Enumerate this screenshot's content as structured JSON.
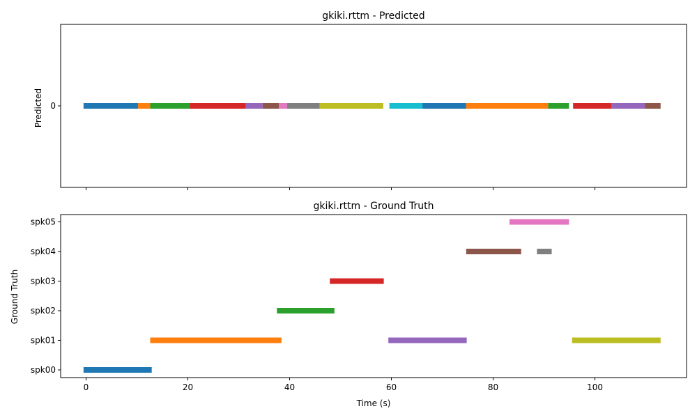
{
  "chart_data": [
    {
      "type": "timeline",
      "title": "gkiki.rttm - Predicted",
      "ylabel": "Predicted",
      "xlabel": "",
      "xlim": [
        -5,
        118
      ],
      "xticks": [
        0,
        20,
        40,
        60,
        80,
        100
      ],
      "show_xtick_labels": false,
      "rows": [
        "0"
      ],
      "segments": [
        {
          "row": 0,
          "start": -0.5,
          "end": 10.2,
          "color": "#1f77b4"
        },
        {
          "row": 0,
          "start": 10.2,
          "end": 12.6,
          "color": "#ff7f0e"
        },
        {
          "row": 0,
          "start": 12.6,
          "end": 20.3,
          "color": "#2ca02c"
        },
        {
          "row": 0,
          "start": 20.3,
          "end": 31.4,
          "color": "#d62728"
        },
        {
          "row": 0,
          "start": 31.4,
          "end": 34.7,
          "color": "#9467bd"
        },
        {
          "row": 0,
          "start": 34.7,
          "end": 37.9,
          "color": "#8c564b"
        },
        {
          "row": 0,
          "start": 37.9,
          "end": 39.5,
          "color": "#e377c2"
        },
        {
          "row": 0,
          "start": 39.5,
          "end": 45.9,
          "color": "#7f7f7f"
        },
        {
          "row": 0,
          "start": 45.9,
          "end": 58.4,
          "color": "#bcbd22"
        },
        {
          "row": 0,
          "start": 59.6,
          "end": 66.1,
          "color": "#17becf"
        },
        {
          "row": 0,
          "start": 66.1,
          "end": 74.7,
          "color": "#1f77b4"
        },
        {
          "row": 0,
          "start": 74.7,
          "end": 90.8,
          "color": "#ff7f0e"
        },
        {
          "row": 0,
          "start": 90.8,
          "end": 94.9,
          "color": "#2ca02c"
        },
        {
          "row": 0,
          "start": 95.7,
          "end": 103.2,
          "color": "#d62728"
        },
        {
          "row": 0,
          "start": 103.2,
          "end": 109.8,
          "color": "#9467bd"
        },
        {
          "row": 0,
          "start": 109.8,
          "end": 112.9,
          "color": "#8c564b"
        }
      ]
    },
    {
      "type": "timeline",
      "title": "gkiki.rttm - Ground Truth",
      "ylabel": "Ground Truth",
      "xlabel": "Time (s)",
      "xlim": [
        -5,
        118
      ],
      "xticks": [
        0,
        20,
        40,
        60,
        80,
        100
      ],
      "show_xtick_labels": true,
      "rows": [
        "spk00",
        "spk01",
        "spk02",
        "spk03",
        "spk04",
        "spk05"
      ],
      "segments": [
        {
          "row": 0,
          "start": -0.5,
          "end": 12.9,
          "color": "#1f77b4"
        },
        {
          "row": 1,
          "start": 12.6,
          "end": 38.4,
          "color": "#ff7f0e"
        },
        {
          "row": 2,
          "start": 37.5,
          "end": 48.8,
          "color": "#2ca02c"
        },
        {
          "row": 3,
          "start": 47.9,
          "end": 58.5,
          "color": "#d62728"
        },
        {
          "row": 1,
          "start": 59.4,
          "end": 74.8,
          "color": "#9467bd"
        },
        {
          "row": 4,
          "start": 74.7,
          "end": 85.5,
          "color": "#8c564b"
        },
        {
          "row": 5,
          "start": 83.2,
          "end": 94.9,
          "color": "#e377c2"
        },
        {
          "row": 4,
          "start": 88.6,
          "end": 91.5,
          "color": "#7f7f7f"
        },
        {
          "row": 1,
          "start": 95.5,
          "end": 112.9,
          "color": "#bcbd22"
        }
      ]
    }
  ]
}
